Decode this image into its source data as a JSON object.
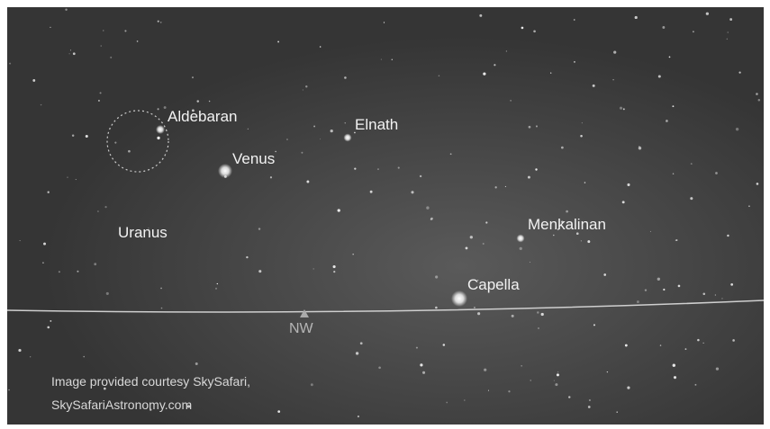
{
  "labels": {
    "aldebaran": "Aldebaran",
    "elnath": "Elnath",
    "venus": "Venus",
    "uranus": "Uranus",
    "menkalinan": "Menkalinan",
    "capella": "Capella",
    "direction": "NW"
  },
  "credit": {
    "line1": "Image provided courtesy SkySafari,",
    "line2": "SkySafariAstronomy.com"
  }
}
